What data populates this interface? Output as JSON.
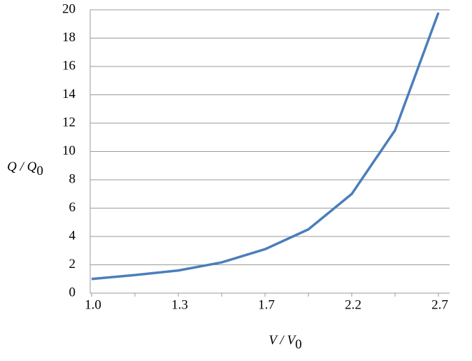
{
  "chart_data": {
    "type": "line",
    "xlabel": "V / V",
    "xlabel_subscript": "0",
    "ylabel": "Q / Q",
    "ylabel_subscript": "0",
    "categories": [
      "1.0",
      null,
      "1.3",
      null,
      "1.7",
      null,
      "2.2",
      null,
      "2.7"
    ],
    "series": [
      {
        "color": "#4a7ebb",
        "values": [
          1.0,
          1.28,
          1.6,
          2.17,
          3.1,
          4.5,
          7.0,
          11.5,
          19.8
        ]
      }
    ],
    "ylim": [
      0,
      20
    ],
    "yticks": [
      0,
      2,
      4,
      6,
      8,
      10,
      12,
      14,
      16,
      18,
      20
    ],
    "grid": true
  }
}
